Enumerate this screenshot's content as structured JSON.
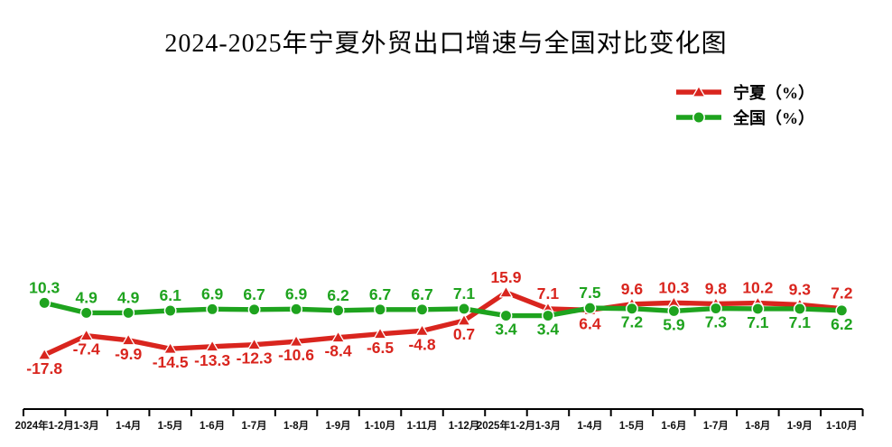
{
  "title": "2024-2025年宁夏外贸出口增速与全国对比变化图",
  "legend": {
    "items": [
      {
        "key": "ningxia",
        "label": "宁夏（%）",
        "color": "#d9251e",
        "marker": "triangle"
      },
      {
        "key": "national",
        "label": "全国（%）",
        "color": "#1ea31e",
        "marker": "circle"
      }
    ]
  },
  "chart_data": {
    "type": "line",
    "title": "2024-2025年宁夏外贸出口增速与全国对比变化图",
    "categories": [
      "2024年1-2月",
      "1-3月",
      "1-4月",
      "1-5月",
      "1-6月",
      "1-7月",
      "1-8月",
      "1-9月",
      "1-10月",
      "1-11月",
      "1-12月",
      "2025年1-2月",
      "1-3月",
      "1-4月",
      "1-5月",
      "1-6月",
      "1-7月",
      "1-8月",
      "1-9月",
      "1-10月"
    ],
    "series": [
      {
        "key": "ningxia",
        "name": "宁夏（%）",
        "color": "#d9251e",
        "marker": "triangle",
        "values": [
          -17.8,
          -7.4,
          -9.9,
          -14.5,
          -13.3,
          -12.3,
          -10.6,
          -8.4,
          -6.5,
          -4.8,
          0.7,
          15.9,
          7.1,
          6.4,
          9.6,
          10.3,
          9.8,
          10.2,
          9.3,
          7.2
        ]
      },
      {
        "key": "national",
        "name": "全国（%）",
        "color": "#1ea31e",
        "marker": "circle",
        "values": [
          10.3,
          4.9,
          4.9,
          6.1,
          6.9,
          6.7,
          6.9,
          6.2,
          6.7,
          6.7,
          7.1,
          3.4,
          3.4,
          7.5,
          7.2,
          5.9,
          7.3,
          7.1,
          7.1,
          6.2
        ]
      }
    ],
    "xlabel": "",
    "ylabel": "",
    "ylim": [
      -20,
      18
    ],
    "grid": false,
    "y_axis_visible": false,
    "legend_position": "top-right",
    "data_labels": true,
    "marker_outline_color": "#ffffff",
    "axis_color": "#000000",
    "category_label_color": "#111111"
  }
}
